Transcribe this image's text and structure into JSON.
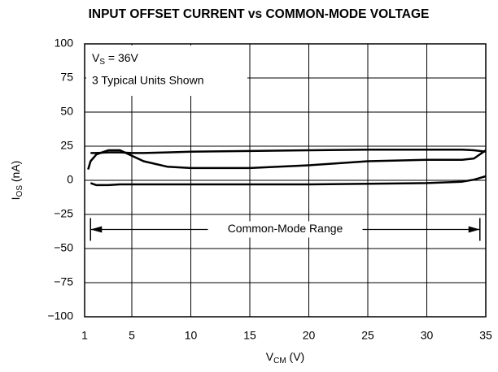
{
  "chart_data": {
    "type": "line",
    "title": "INPUT OFFSET CURRENT vs COMMON-MODE VOLTAGE",
    "x_label": {
      "main": "V",
      "sub": "CM",
      "rest": " (V)"
    },
    "y_label": {
      "main": "I",
      "sub": "OS",
      "rest": " (nA)"
    },
    "annotations": [
      {
        "main": "V",
        "sub": "S",
        "rest": " = 36V"
      },
      {
        "text": "3 Typical Units Shown"
      }
    ],
    "range_annotation": {
      "text": "Common-Mode Range",
      "x": [
        1.5,
        34.5
      ],
      "y": -36
    },
    "x": [
      1.3,
      1.5,
      2,
      3,
      4,
      5,
      6,
      8,
      10,
      15,
      20,
      25,
      30,
      33,
      34,
      35
    ],
    "series": [
      {
        "color": "#000000",
        "values": [
          null,
          20,
          20,
          20.5,
          20.5,
          20,
          20,
          20.5,
          21,
          21.5,
          22,
          22.5,
          22.5,
          22.5,
          22,
          21
        ]
      },
      {
        "color": "#000000",
        "values": [
          8,
          14,
          19,
          22,
          22,
          18,
          14,
          10,
          9,
          9,
          11,
          14,
          15,
          15,
          16,
          22
        ]
      },
      {
        "color": "#000000",
        "values": [
          null,
          -2,
          -3.5,
          -3.5,
          -3,
          -3,
          -3,
          -3,
          -3,
          -3,
          -3,
          -2.5,
          -2,
          -1,
          0.5,
          3
        ]
      }
    ],
    "xlim": [
      1,
      35
    ],
    "ylim": [
      -100,
      100
    ],
    "xticks": [
      1,
      5,
      10,
      15,
      20,
      25,
      30,
      35
    ],
    "yticks": [
      {
        "value": -100,
        "label": "−100"
      },
      {
        "value": -75,
        "label": "−75"
      },
      {
        "value": -50,
        "label": "−50"
      },
      {
        "value": -25,
        "label": "−25"
      },
      0,
      25,
      50,
      75,
      100
    ],
    "grid": true
  }
}
